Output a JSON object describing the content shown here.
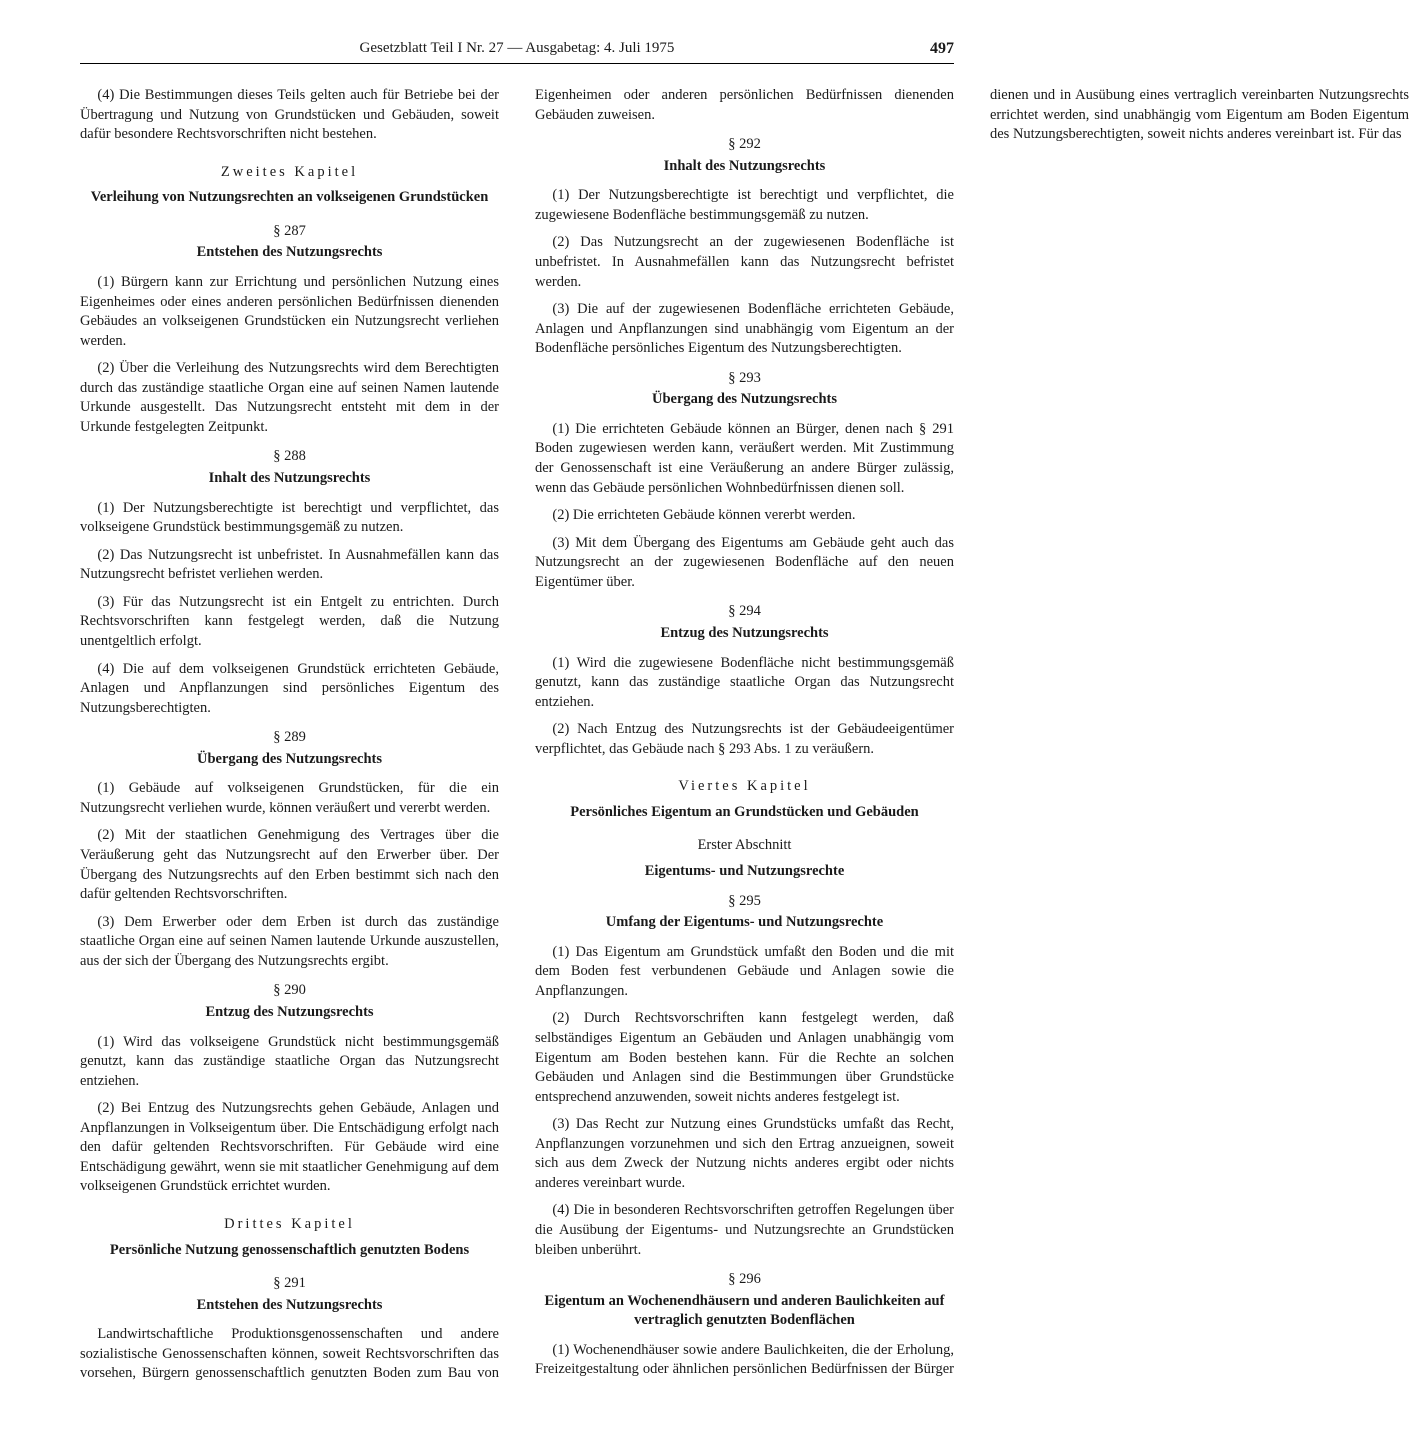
{
  "header": {
    "title": "Gesetzblatt Teil I Nr. 27 — Ausgabetag: 4. Juli 1975",
    "page_number": "497"
  },
  "left": {
    "p4": "(4) Die Bestimmungen dieses Teils gelten auch für Betriebe bei der Übertragung und Nutzung von Grundstücken und Gebäuden, soweit dafür besondere Rechtsvorschriften nicht bestehen.",
    "ch2": "Zweites Kapitel",
    "ch2_title": "Verleihung von Nutzungsrechten an volkseigenen Grundstücken",
    "s287": "§ 287",
    "s287_title": "Entstehen des Nutzungsrechts",
    "s287_p1": "(1) Bürgern kann zur Errichtung und persönlichen Nutzung eines Eigenheimes oder eines anderen persönlichen Bedürfnissen dienenden Gebäudes an volkseigenen Grundstücken ein Nutzungsrecht verliehen werden.",
    "s287_p2": "(2) Über die Verleihung des Nutzungsrechts wird dem Berechtigten durch das zuständige staatliche Organ eine auf seinen Namen lautende Urkunde ausgestellt. Das Nutzungsrecht entsteht mit dem in der Urkunde festgelegten Zeitpunkt.",
    "s288": "§ 288",
    "s288_title": "Inhalt des Nutzungsrechts",
    "s288_p1": "(1) Der Nutzungsberechtigte ist berechtigt und verpflichtet, das volkseigene Grundstück bestimmungsgemäß zu nutzen.",
    "s288_p2": "(2) Das Nutzungsrecht ist unbefristet. In Ausnahmefällen kann das Nutzungsrecht befristet verliehen werden.",
    "s288_p3": "(3) Für das Nutzungsrecht ist ein Entgelt zu entrichten. Durch Rechtsvorschriften kann festgelegt werden, daß die Nutzung unentgeltlich erfolgt.",
    "s288_p4": "(4) Die auf dem volkseigenen Grundstück errichteten Gebäude, Anlagen und Anpflanzungen sind persönliches Eigentum des Nutzungsberechtigten.",
    "s289": "§ 289",
    "s289_title": "Übergang des Nutzungsrechts",
    "s289_p1": "(1) Gebäude auf volkseigenen Grundstücken, für die ein Nutzungsrecht verliehen wurde, können veräußert und vererbt werden.",
    "s289_p2": "(2) Mit der staatlichen Genehmigung des Vertrages über die Veräußerung geht das Nutzungsrecht auf den Erwerber über. Der Übergang des Nutzungsrechts auf den Erben bestimmt sich nach den dafür geltenden Rechtsvorschriften.",
    "s289_p3": "(3) Dem Erwerber oder dem Erben ist durch das zuständige staatliche Organ eine auf seinen Namen lautende Urkunde auszustellen, aus der sich der Übergang des Nutzungsrechts ergibt.",
    "s290": "§ 290",
    "s290_title": "Entzug des Nutzungsrechts",
    "s290_p1": "(1) Wird das volkseigene Grundstück nicht bestimmungsgemäß genutzt, kann das zuständige staatliche Organ das Nutzungsrecht entziehen.",
    "s290_p2": "(2) Bei Entzug des Nutzungsrechts gehen Gebäude, Anlagen und Anpflanzungen in Volkseigentum über. Die Entschädigung erfolgt nach den dafür geltenden Rechtsvorschriften. Für Gebäude wird eine Entschädigung gewährt, wenn sie mit staatlicher Genehmigung auf dem volkseigenen Grundstück errichtet wurden.",
    "ch3": "Drittes Kapitel",
    "ch3_title": "Persönliche Nutzung genossenschaftlich genutzten Bodens",
    "s291": "§ 291",
    "s291_title": "Entstehen des Nutzungsrechts",
    "s291_p": "Landwirtschaftliche Produktionsgenossenschaften und andere sozialistische Genossenschaften können, soweit Rechtsvorschriften das vorsehen, Bürgern genossenschaftlich genutzten Boden zum Bau von Eigenheimen oder anderen persönlichen Bedürfnissen dienenden Gebäuden zuweisen."
  },
  "right": {
    "s292": "§ 292",
    "s292_title": "Inhalt des Nutzungsrechts",
    "s292_p1": "(1) Der Nutzungsberechtigte ist berechtigt und verpflichtet, die zugewiesene Bodenfläche bestimmungsgemäß zu nutzen.",
    "s292_p2": "(2) Das Nutzungsrecht an der zugewiesenen Bodenfläche ist unbefristet. In Ausnahmefällen kann das Nutzungsrecht befristet werden.",
    "s292_p3": "(3) Die auf der zugewiesenen Bodenfläche errichteten Gebäude, Anlagen und Anpflanzungen sind unabhängig vom Eigentum an der Bodenfläche persönliches Eigentum des Nutzungsberechtigten.",
    "s293": "§ 293",
    "s293_title": "Übergang des Nutzungsrechts",
    "s293_p1": "(1) Die errichteten Gebäude können an Bürger, denen nach § 291 Boden zugewiesen werden kann, veräußert werden. Mit Zustimmung der Genossenschaft ist eine Veräußerung an andere Bürger zulässig, wenn das Gebäude persönlichen Wohnbedürfnissen dienen soll.",
    "s293_p2": "(2) Die errichteten Gebäude können vererbt werden.",
    "s293_p3": "(3) Mit dem Übergang des Eigentums am Gebäude geht auch das Nutzungsrecht an der zugewiesenen Bodenfläche auf den neuen Eigentümer über.",
    "s294": "§ 294",
    "s294_title": "Entzug des Nutzungsrechts",
    "s294_p1": "(1) Wird die zugewiesene Bodenfläche nicht bestimmungsgemäß genutzt, kann das zuständige staatliche Organ das Nutzungsrecht entziehen.",
    "s294_p2": "(2) Nach Entzug des Nutzungsrechts ist der Gebäudeeigentümer verpflichtet, das Gebäude nach § 293 Abs. 1 zu veräußern.",
    "ch4": "Viertes Kapitel",
    "ch4_title": "Persönliches Eigentum an Grundstücken und Gebäuden",
    "abs1": "Erster Abschnitt",
    "abs1_title": "Eigentums- und Nutzungsrechte",
    "s295": "§ 295",
    "s295_title": "Umfang der Eigentums- und Nutzungsrechte",
    "s295_p1": "(1) Das Eigentum am Grundstück umfaßt den Boden und die mit dem Boden fest verbundenen Gebäude und Anlagen sowie die Anpflanzungen.",
    "s295_p2": "(2) Durch Rechtsvorschriften kann festgelegt werden, daß selbständiges Eigentum an Gebäuden und Anlagen unabhängig vom Eigentum am Boden bestehen kann. Für die Rechte an solchen Gebäuden und Anlagen sind die Bestimmungen über Grundstücke entsprechend anzuwenden, soweit nichts anderes festgelegt ist.",
    "s295_p3": "(3) Das Recht zur Nutzung eines Grundstücks umfaßt das Recht, Anpflanzungen vorzunehmen und sich den Ertrag anzueignen, soweit sich aus dem Zweck der Nutzung nichts anderes ergibt oder nichts anderes vereinbart wurde.",
    "s295_p4": "(4) Die in besonderen Rechtsvorschriften getroffen Regelungen über die Ausübung der Eigentums- und Nutzungsrechte an Grundstücken bleiben unberührt.",
    "s296": "§ 296",
    "s296_title": "Eigentum an Wochenendhäusern und anderen Baulichkeiten auf vertraglich genutzten Bodenflächen",
    "s296_p1": "(1) Wochenendhäuser sowie andere Baulichkeiten, die der Erholung, Freizeitgestaltung oder ähnlichen persönlichen Bedürfnissen der Bürger dienen und in Ausübung eines vertraglich vereinbarten Nutzungsrechts errichtet werden, sind unabhängig vom Eigentum am Boden Eigentum des Nutzungsberechtigten, soweit nichts anderes vereinbart ist. Für das"
  }
}
